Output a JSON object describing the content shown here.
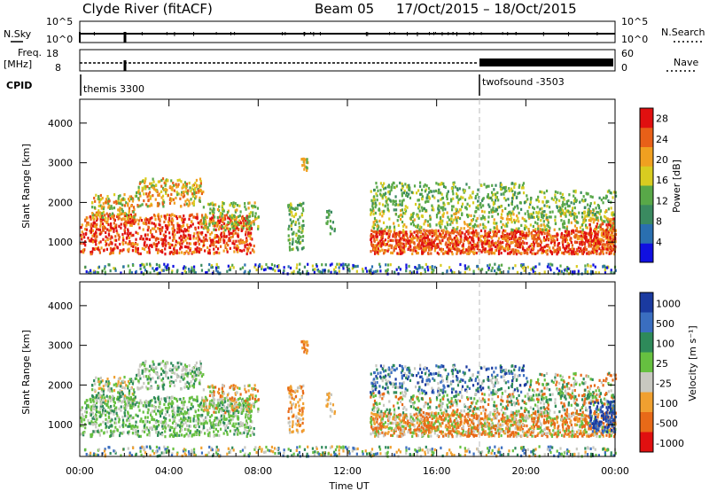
{
  "header": {
    "station": "Clyde River (fitACF)",
    "beam": "Beam 05",
    "date_range": "17/Oct/2015 – 18/Oct/2015"
  },
  "status_panels": {
    "nsky_label": "N.Sky",
    "nsky_ticks": [
      "10^5",
      "10^0"
    ],
    "nsearch_label": "N.Search",
    "nsearch_ticks": [
      "10^5",
      "10^0"
    ],
    "freq_label_1": "Freq.",
    "freq_label_2": "[MHz]",
    "freq_ticks": [
      "18",
      "8"
    ],
    "nave_label": "Nave",
    "nave_ticks": [
      "60",
      "0"
    ],
    "cpid_label": "CPID",
    "cpid_segments": [
      {
        "name": "themis 3300",
        "start_hour": 0
      },
      {
        "name": "twofsound -3503",
        "start_hour": 18
      }
    ]
  },
  "chart_data": [
    {
      "type": "heatmap",
      "title": "",
      "ylabel": "Slant Range [km]",
      "xlabel": "",
      "xlim": [
        0,
        24
      ],
      "ylim": [
        200,
        4600
      ],
      "yticks": [
        "1000",
        "2000",
        "3000",
        "4000"
      ],
      "colorbar": {
        "label": "Power [dB]",
        "ticks": [
          "4",
          "8",
          "12",
          "16",
          "20",
          "24",
          "28"
        ],
        "range": [
          0,
          30
        ],
        "colors": [
          "#1010e0",
          "#2a6fb0",
          "#3a8a60",
          "#58a848",
          "#d8cc20",
          "#f0a020",
          "#e86018",
          "#e01010"
        ]
      }
    },
    {
      "type": "heatmap",
      "title": "",
      "ylabel": "Slant Range [km]",
      "xlabel": "Time UT",
      "xlim": [
        0,
        24
      ],
      "ylim": [
        200,
        4600
      ],
      "yticks": [
        "1000",
        "2000",
        "3000",
        "4000"
      ],
      "xticks": [
        "00:00",
        "04:00",
        "08:00",
        "12:00",
        "16:00",
        "20:00",
        "00:00"
      ],
      "colorbar": {
        "label": "Velocity [m s⁻¹]",
        "ticks": [
          "1000",
          "500",
          "100",
          "25",
          "-25",
          "-100",
          "-500",
          "-1000"
        ],
        "colors": [
          "#1a3aa0",
          "#3a6ec0",
          "#2e8a5a",
          "#66c040",
          "#c8c8c0",
          "#f0a030",
          "#e86a18",
          "#e01010"
        ]
      }
    }
  ]
}
